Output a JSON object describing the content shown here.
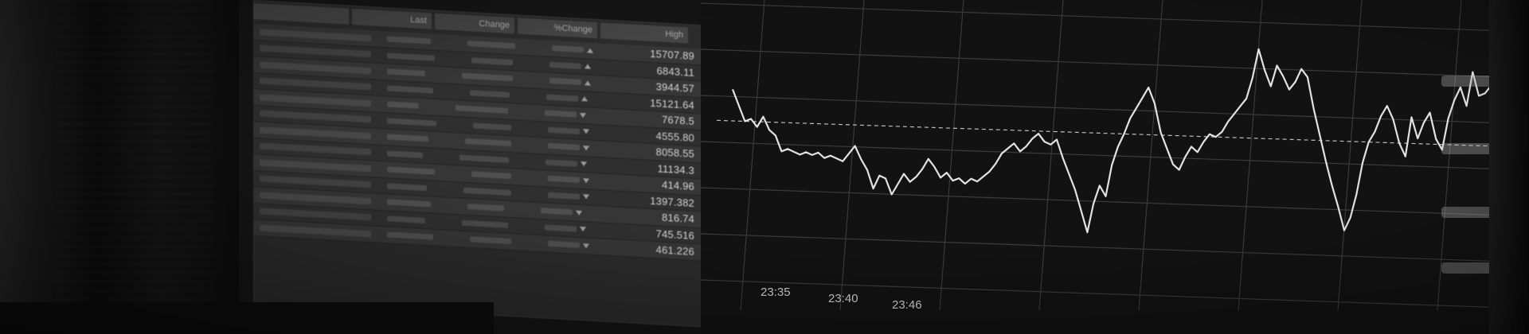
{
  "table": {
    "columns": [
      "Last",
      "Change",
      "%Change",
      "High"
    ],
    "rows": [
      {
        "high": "15707.89",
        "dir": "up"
      },
      {
        "high": "6843.11",
        "dir": "up"
      },
      {
        "high": "3944.57",
        "dir": "up"
      },
      {
        "high": "15121.64",
        "dir": "up"
      },
      {
        "high": "7678.5",
        "dir": "down"
      },
      {
        "high": "4555.80",
        "dir": "down"
      },
      {
        "high": "8058.55",
        "dir": "down"
      },
      {
        "high": "11134.3",
        "dir": "down"
      },
      {
        "high": "414.96",
        "dir": "down"
      },
      {
        "high": "1397.382",
        "dir": "down"
      },
      {
        "high": "816.74",
        "dir": "down"
      },
      {
        "high": "745.516",
        "dir": "down"
      },
      {
        "high": "461.226",
        "dir": "down"
      }
    ],
    "scroll_up": "▲",
    "scroll_down": "▼"
  },
  "chart_data": {
    "type": "line",
    "x_tick_labels": [
      "23:35",
      "23:40",
      "23:46"
    ],
    "grid": true,
    "reference_line": "dashed",
    "series": [
      {
        "values": [
          0.72,
          0.66,
          0.6,
          0.61,
          0.58,
          0.62,
          0.57,
          0.55,
          0.49,
          0.5,
          0.49,
          0.48,
          0.49,
          0.48,
          0.49,
          0.47,
          0.48,
          0.47,
          0.46,
          0.49,
          0.52,
          0.47,
          0.43,
          0.36,
          0.41,
          0.4,
          0.34,
          0.38,
          0.42,
          0.39,
          0.41,
          0.44,
          0.48,
          0.45,
          0.41,
          0.43,
          0.4,
          0.41,
          0.39,
          0.41,
          0.4,
          0.42,
          0.44,
          0.47,
          0.51,
          0.53,
          0.55,
          0.52,
          0.54,
          0.57,
          0.59,
          0.56,
          0.55,
          0.57,
          0.5,
          0.44,
          0.38,
          0.3,
          0.22,
          0.33,
          0.4,
          0.36,
          0.48,
          0.55,
          0.6,
          0.66,
          0.7,
          0.74,
          0.78,
          0.72,
          0.61,
          0.55,
          0.49,
          0.47,
          0.52,
          0.56,
          0.54,
          0.58,
          0.61,
          0.6,
          0.62,
          0.66,
          0.69,
          0.72,
          0.75,
          0.83,
          0.94,
          0.86,
          0.8,
          0.88,
          0.84,
          0.79,
          0.82,
          0.87,
          0.84,
          0.72,
          0.62,
          0.52,
          0.43,
          0.35,
          0.26,
          0.31,
          0.4,
          0.52,
          0.6,
          0.64,
          0.7,
          0.74,
          0.69,
          0.6,
          0.55,
          0.7,
          0.62,
          0.68,
          0.72,
          0.62,
          0.58,
          0.7,
          0.77,
          0.82,
          0.75,
          0.88,
          0.79,
          0.8,
          0.83,
          0.86
        ]
      }
    ],
    "y_reference": 0.6
  }
}
